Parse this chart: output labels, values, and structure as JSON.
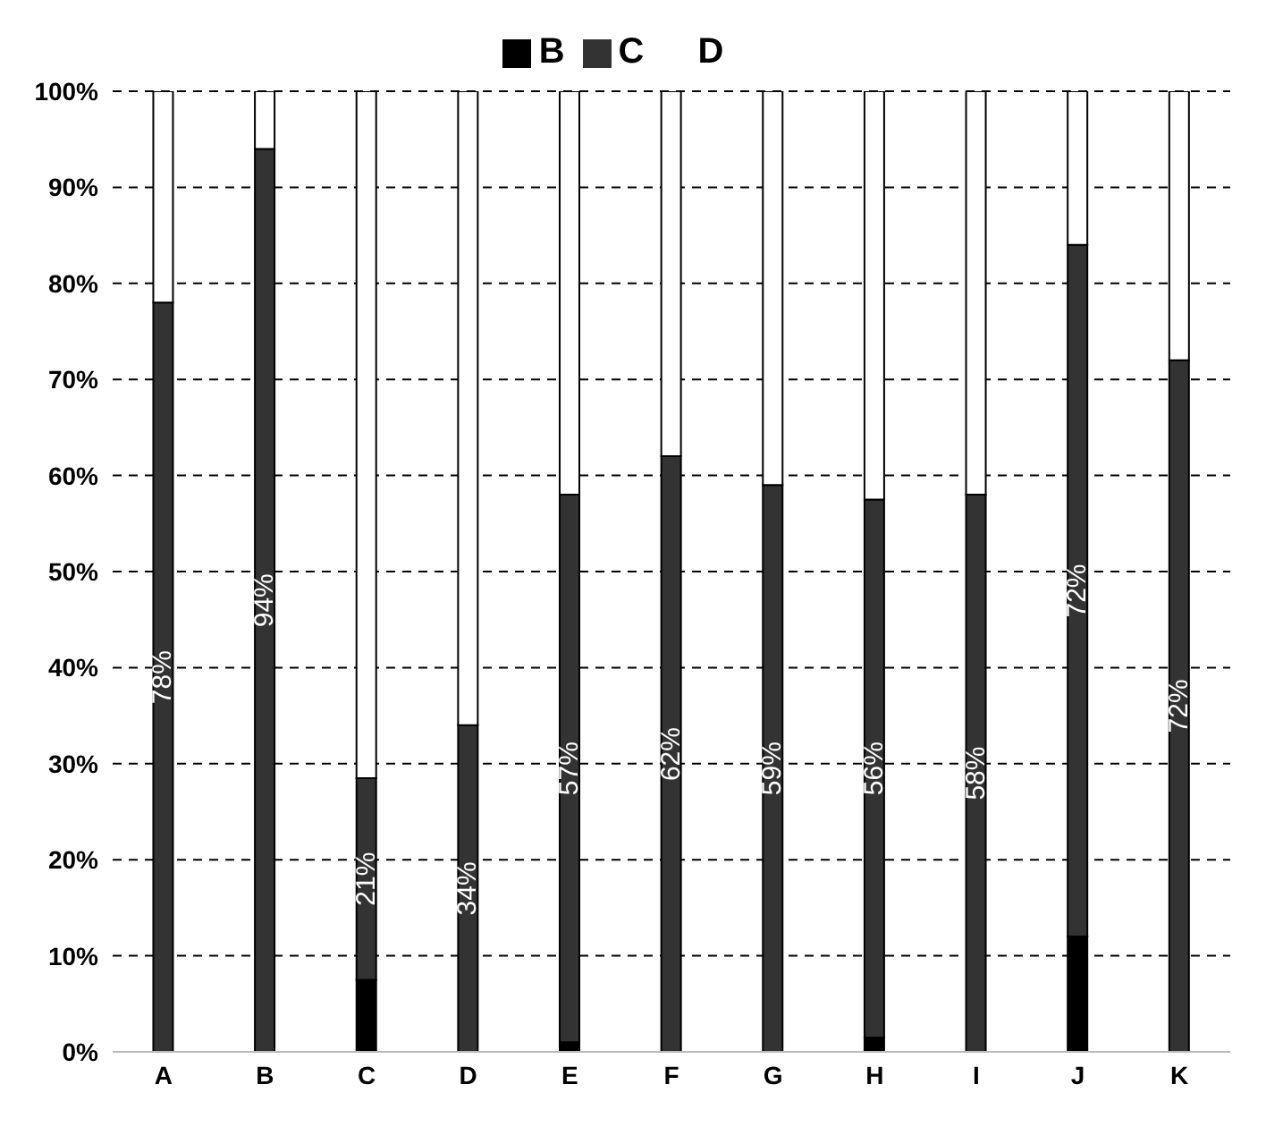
{
  "chart_data": {
    "type": "bar",
    "stacked": true,
    "categories": [
      "A",
      "B",
      "C",
      "D",
      "E",
      "F",
      "G",
      "H",
      "I",
      "J",
      "K"
    ],
    "series": [
      {
        "name": "B",
        "color": "#000000",
        "values": [
          0,
          0,
          7.5,
          0,
          1,
          0,
          0,
          1.5,
          0,
          12,
          0
        ]
      },
      {
        "name": "C",
        "color": "#333333",
        "values": [
          78,
          94,
          21,
          34,
          57,
          62,
          59,
          56,
          58,
          72,
          72
        ],
        "value_labels": [
          "78%",
          "94%",
          "21%",
          "34%",
          "57%",
          "62%",
          "59%",
          "56%",
          "58%",
          "72%",
          "72%"
        ]
      },
      {
        "name": "D",
        "color": "#ffffff",
        "values": [
          22,
          6,
          71.5,
          66,
          42,
          38,
          41,
          42.5,
          42,
          16,
          28
        ]
      }
    ],
    "ylim": [
      0,
      100
    ],
    "yticks": [
      {
        "value": 0,
        "label": "0%"
      },
      {
        "value": 10,
        "label": "10%"
      },
      {
        "value": 20,
        "label": "20%"
      },
      {
        "value": 30,
        "label": "30%"
      },
      {
        "value": 40,
        "label": "40%"
      },
      {
        "value": 50,
        "label": "50%"
      },
      {
        "value": 60,
        "label": "60%"
      },
      {
        "value": 70,
        "label": "70%"
      },
      {
        "value": 80,
        "label": "80%"
      },
      {
        "value": 90,
        "label": "90%"
      },
      {
        "value": 100,
        "label": "100%"
      }
    ],
    "grid": "y",
    "legend": "top"
  }
}
